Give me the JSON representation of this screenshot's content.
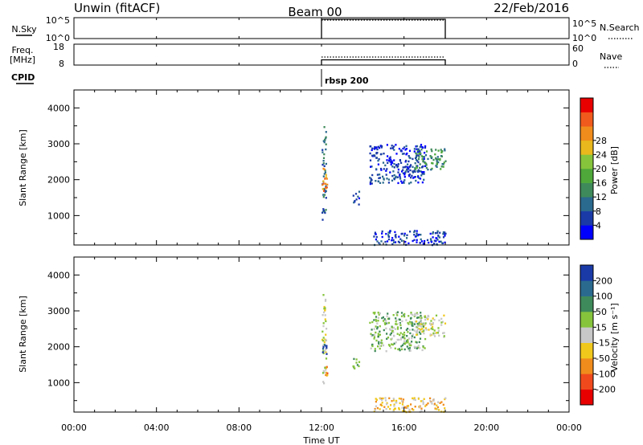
{
  "header": {
    "station": "Unwin (fitACF)",
    "beam": "Beam 00",
    "date": "22/Feb/2016"
  },
  "chart_data": [
    {
      "type": "line",
      "panel": "noise",
      "left_label": "N.Sky",
      "right_label": "N.Search",
      "left_ticks": [
        "10^5",
        "10^0"
      ],
      "right_ticks": [
        "10^5",
        "10^0"
      ],
      "x": [
        "12:00",
        "18:00"
      ],
      "series": [
        {
          "name": "N.Sky",
          "values": [
            100000.0,
            100000.0
          ]
        },
        {
          "name": "N.Search",
          "values": [
            100000.0,
            100000.0
          ]
        }
      ]
    },
    {
      "type": "line",
      "panel": "frequency",
      "left_label": "Freq.",
      "left_unit": "[MHz]",
      "right_label": "Nave",
      "left_ticks": [
        "18",
        "8"
      ],
      "right_ticks": [
        "60",
        "0"
      ],
      "left_range": [
        8,
        18
      ],
      "right_range": [
        0,
        60
      ],
      "series": [
        {
          "name": "Freq.",
          "values": [
            10.5,
            10.5
          ]
        },
        {
          "name": "Nave",
          "values": [
            23,
            23
          ]
        }
      ]
    },
    {
      "type": "table",
      "panel": "cpid",
      "label": "CPID",
      "entries": [
        {
          "time": "12:00",
          "text": "rbsp 200"
        }
      ]
    },
    {
      "type": "heatmap",
      "panel": "power",
      "ylabel": "Slant Range [km]",
      "ylim": [
        180,
        4500
      ],
      "yticks": [
        1000,
        2000,
        3000,
        4000
      ],
      "xlim_hours": [
        0,
        24
      ],
      "colorbar_label": "Power [dB]",
      "colorbar_ticks": [
        "4",
        "8",
        "12",
        "16",
        "20",
        "24",
        "28"
      ],
      "colors": [
        "#0000ff",
        "#1a3aa8",
        "#2a6a8e",
        "#3f8a5a",
        "#4ea83a",
        "#86c43c",
        "#e8b81c",
        "#f08c1c",
        "#f05a1c",
        "#e80000"
      ],
      "regions": [
        {
          "t0": 12.0,
          "t1": 12.2,
          "r0": 900,
          "r1": 3500,
          "level": 2
        },
        {
          "t0": 12.0,
          "t1": 12.25,
          "r0": 1700,
          "r1": 2500,
          "level": 7
        },
        {
          "t0": 13.5,
          "t1": 13.8,
          "r0": 1300,
          "r1": 1700,
          "level": 1
        },
        {
          "t0": 14.3,
          "t1": 17.0,
          "r0": 1900,
          "r1": 3000,
          "level": 1
        },
        {
          "t0": 16.5,
          "t1": 18.0,
          "r0": 2300,
          "r1": 2900,
          "level": 3
        },
        {
          "t0": 14.5,
          "t1": 18.0,
          "r0": 200,
          "r1": 600,
          "level": 1
        }
      ]
    },
    {
      "type": "heatmap",
      "panel": "velocity",
      "ylabel": "Slant Range [km]",
      "ylim": [
        180,
        4500
      ],
      "yticks": [
        1000,
        2000,
        3000,
        4000
      ],
      "xlim_hours": [
        0,
        24
      ],
      "xlabel": "Time UT",
      "xticks": [
        "00:00",
        "04:00",
        "08:00",
        "12:00",
        "16:00",
        "20:00",
        "00:00"
      ],
      "colorbar_label": "Velocity [m s⁻¹]",
      "colorbar_ticks": [
        "-200",
        "-100",
        "-50",
        "-15",
        "15",
        "50",
        "100",
        "200"
      ],
      "colors": [
        "#e80000",
        "#f04a1c",
        "#f08c1c",
        "#f0c81c",
        "#c8c8c8",
        "#86c43c",
        "#3f8a5a",
        "#2a6a8e",
        "#1a3aa8"
      ],
      "regions": [
        {
          "t0": 12.0,
          "t1": 12.2,
          "r0": 900,
          "r1": 3500,
          "level": 4
        },
        {
          "t0": 12.0,
          "t1": 12.25,
          "r0": 1800,
          "r1": 2200,
          "level": 8
        },
        {
          "t0": 12.0,
          "t1": 12.25,
          "r0": 1200,
          "r1": 1500,
          "level": 2
        },
        {
          "t0": 13.5,
          "t1": 13.8,
          "r0": 1300,
          "r1": 1700,
          "level": 5
        },
        {
          "t0": 14.3,
          "t1": 17.0,
          "r0": 1900,
          "r1": 3000,
          "level": 5
        },
        {
          "t0": 16.5,
          "t1": 18.0,
          "r0": 2300,
          "r1": 2900,
          "level": 4
        },
        {
          "t0": 14.5,
          "t1": 18.0,
          "r0": 200,
          "r1": 600,
          "level": 3
        }
      ]
    }
  ]
}
